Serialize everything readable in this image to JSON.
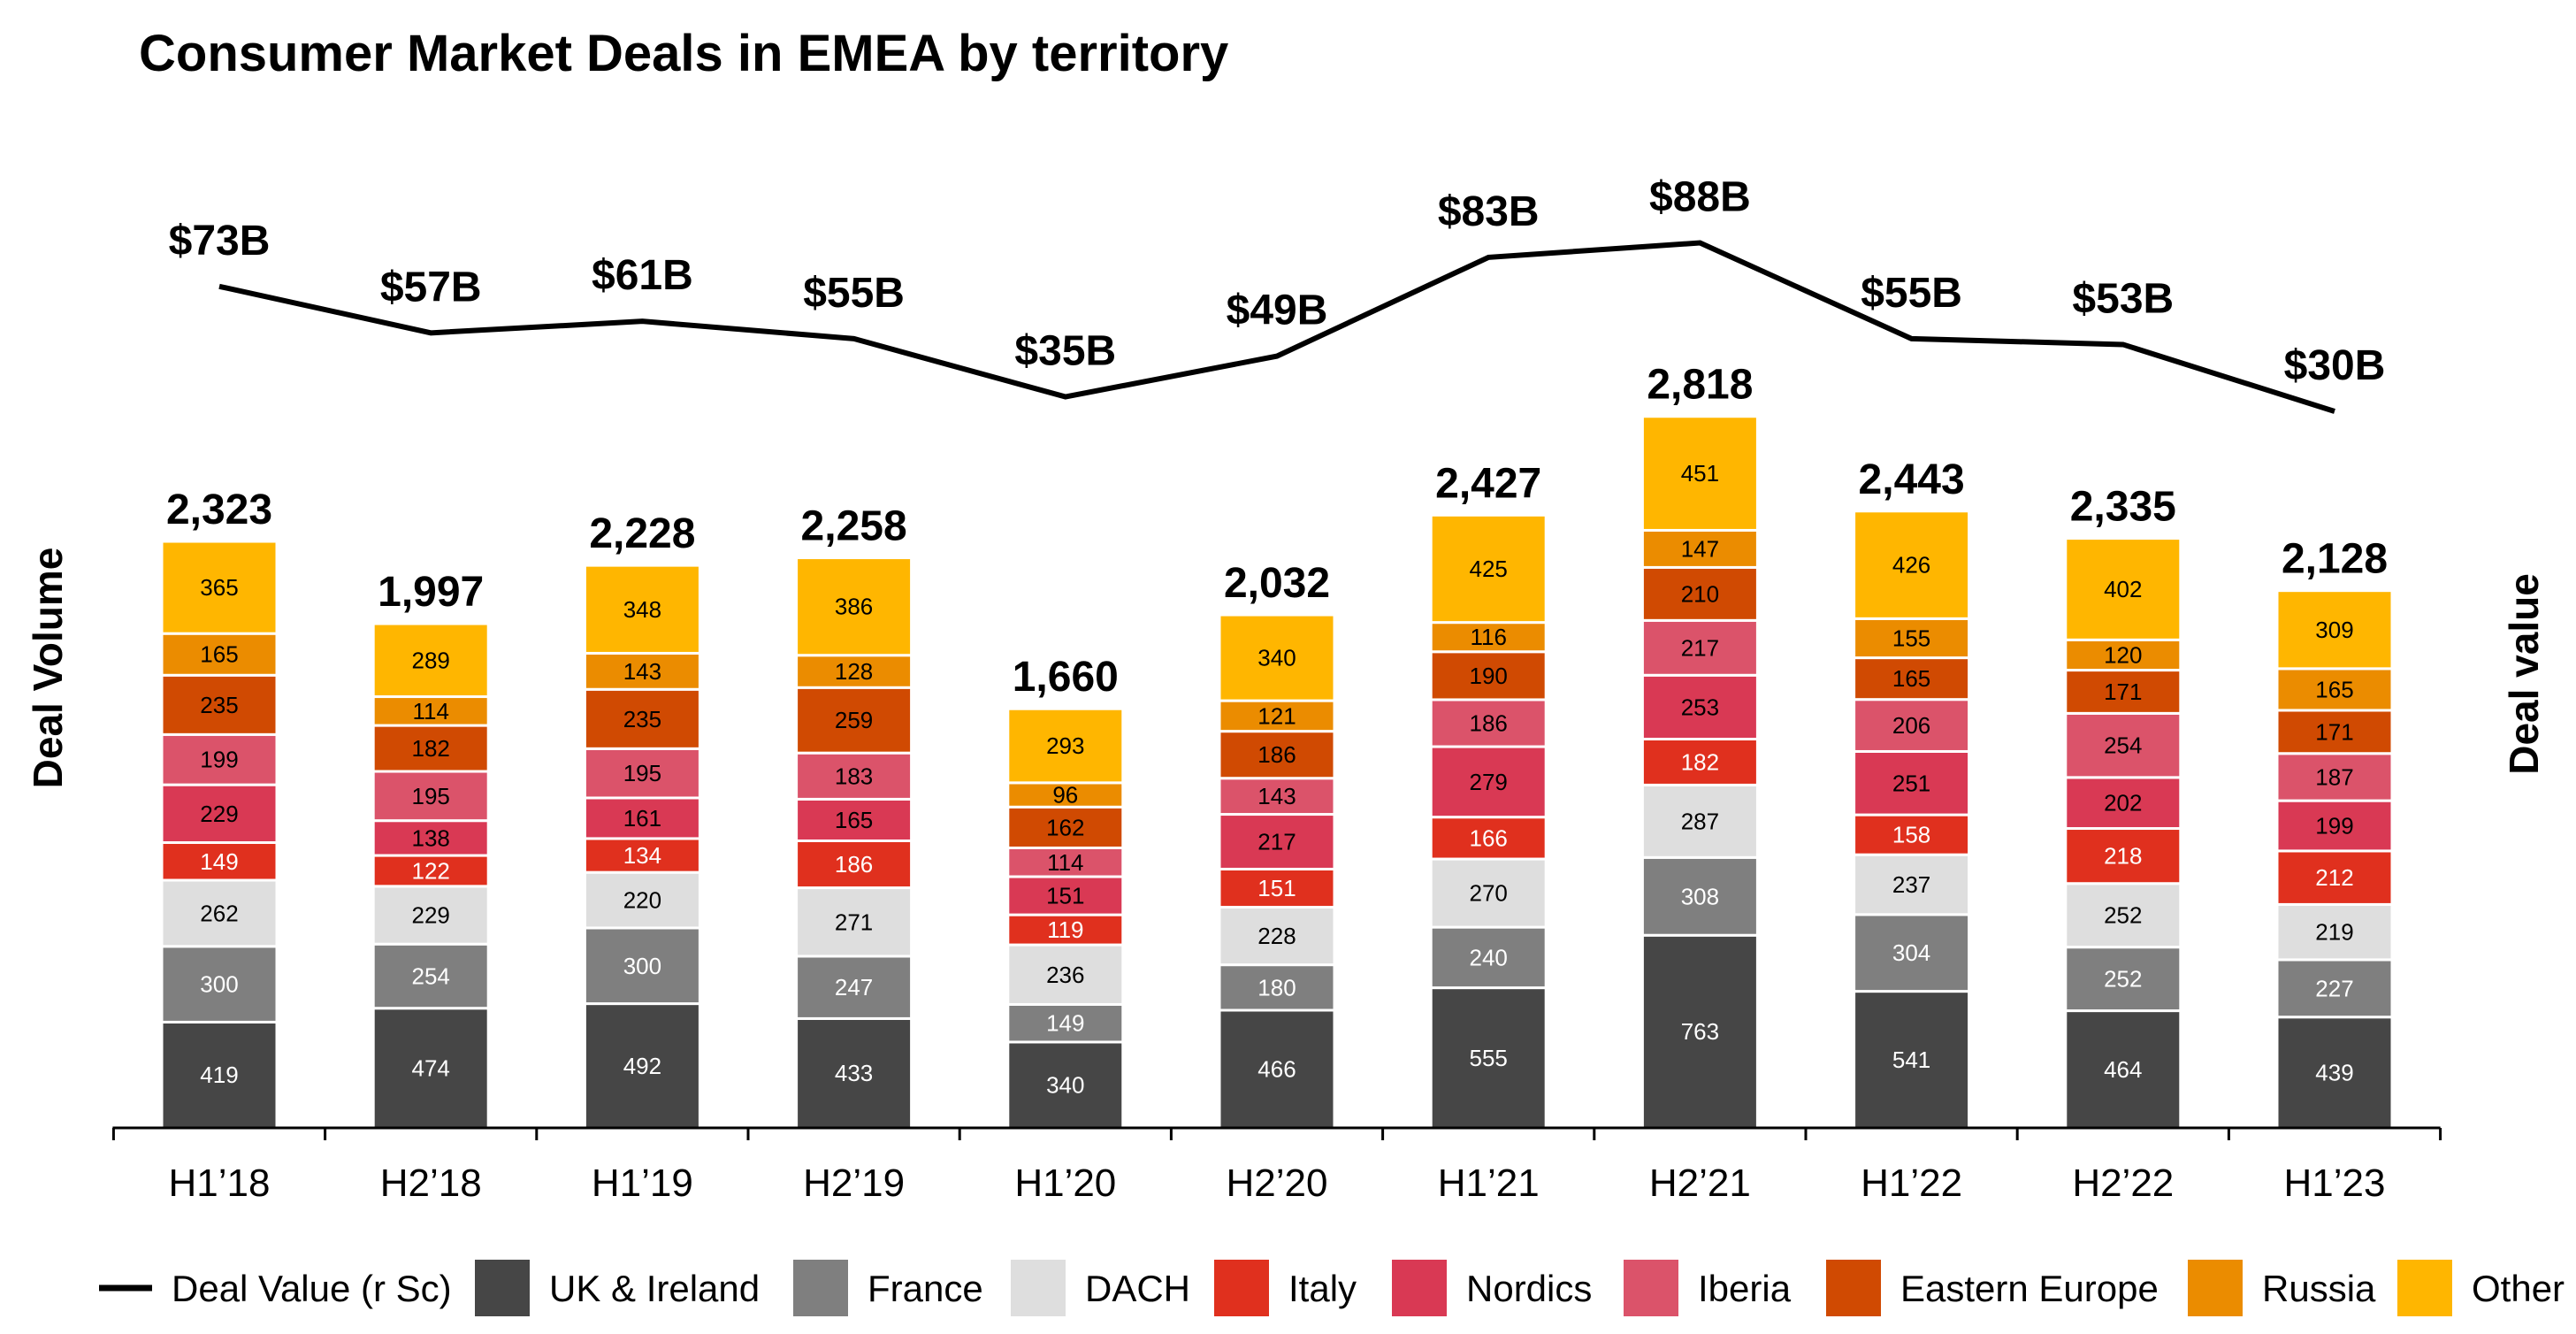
{
  "chart_data": {
    "type": "bar",
    "stacked": true,
    "title": "Consumer Market Deals in EMEA by territory",
    "ylabel": "Deal Volume",
    "y2label": "Deal value",
    "categories": [
      "H1’18",
      "H2’18",
      "H1’19",
      "H2’19",
      "H1’20",
      "H2’20",
      "H1’21",
      "H2’21",
      "H1’22",
      "H2’22",
      "H1’23"
    ],
    "totals": [
      "2,323",
      "1,997",
      "2,228",
      "2,258",
      "1,660",
      "2,032",
      "2,427",
      "2,818",
      "2,443",
      "2,335",
      "2,128"
    ],
    "series": [
      {
        "name": "UK & Ireland",
        "color": "#464646",
        "label_color": "#ffffff",
        "values": [
          419,
          474,
          492,
          433,
          340,
          466,
          555,
          763,
          541,
          464,
          439
        ]
      },
      {
        "name": "France",
        "color": "#7f7f7f",
        "label_color": "#ffffff",
        "values": [
          300,
          254,
          300,
          247,
          149,
          180,
          240,
          308,
          304,
          252,
          227
        ]
      },
      {
        "name": "DACH",
        "color": "#dedede",
        "label_color": "#000000",
        "values": [
          262,
          229,
          220,
          271,
          236,
          228,
          270,
          287,
          237,
          252,
          219
        ]
      },
      {
        "name": "Italy",
        "color": "#e0301e",
        "label_color": "#ffffff",
        "values": [
          149,
          122,
          134,
          186,
          119,
          151,
          166,
          182,
          158,
          218,
          212
        ]
      },
      {
        "name": "Nordics",
        "color": "#d93954",
        "label_color": "#000000",
        "values": [
          229,
          138,
          161,
          165,
          151,
          217,
          279,
          253,
          251,
          202,
          199
        ]
      },
      {
        "name": "Iberia",
        "color": "#db536a",
        "label_color": "#000000",
        "values": [
          199,
          195,
          195,
          183,
          114,
          143,
          186,
          217,
          206,
          254,
          187
        ]
      },
      {
        "name": "Eastern Europe",
        "color": "#d04a02",
        "label_color": "#000000",
        "values": [
          235,
          182,
          235,
          259,
          162,
          186,
          190,
          210,
          165,
          171,
          171
        ]
      },
      {
        "name": "Russia",
        "color": "#eb8c00",
        "label_color": "#000000",
        "values": [
          165,
          114,
          143,
          128,
          96,
          121,
          116,
          147,
          155,
          120,
          165
        ]
      },
      {
        "name": "Other",
        "color": "#ffb600",
        "label_color": "#000000",
        "values": [
          365,
          289,
          348,
          386,
          293,
          340,
          425,
          451,
          426,
          402,
          309
        ]
      }
    ],
    "line": {
      "name": "Deal Value (r Sc)",
      "color": "#000000",
      "values": [
        73,
        57,
        61,
        55,
        35,
        49,
        83,
        88,
        55,
        53,
        30
      ],
      "labels": [
        "$73B",
        "$57B",
        "$61B",
        "$55B",
        "$35B",
        "$49B",
        "$83B",
        "$88B",
        "$55B",
        "$53B",
        "$30B"
      ]
    },
    "legend_position": "bottom",
    "grid": false
  }
}
